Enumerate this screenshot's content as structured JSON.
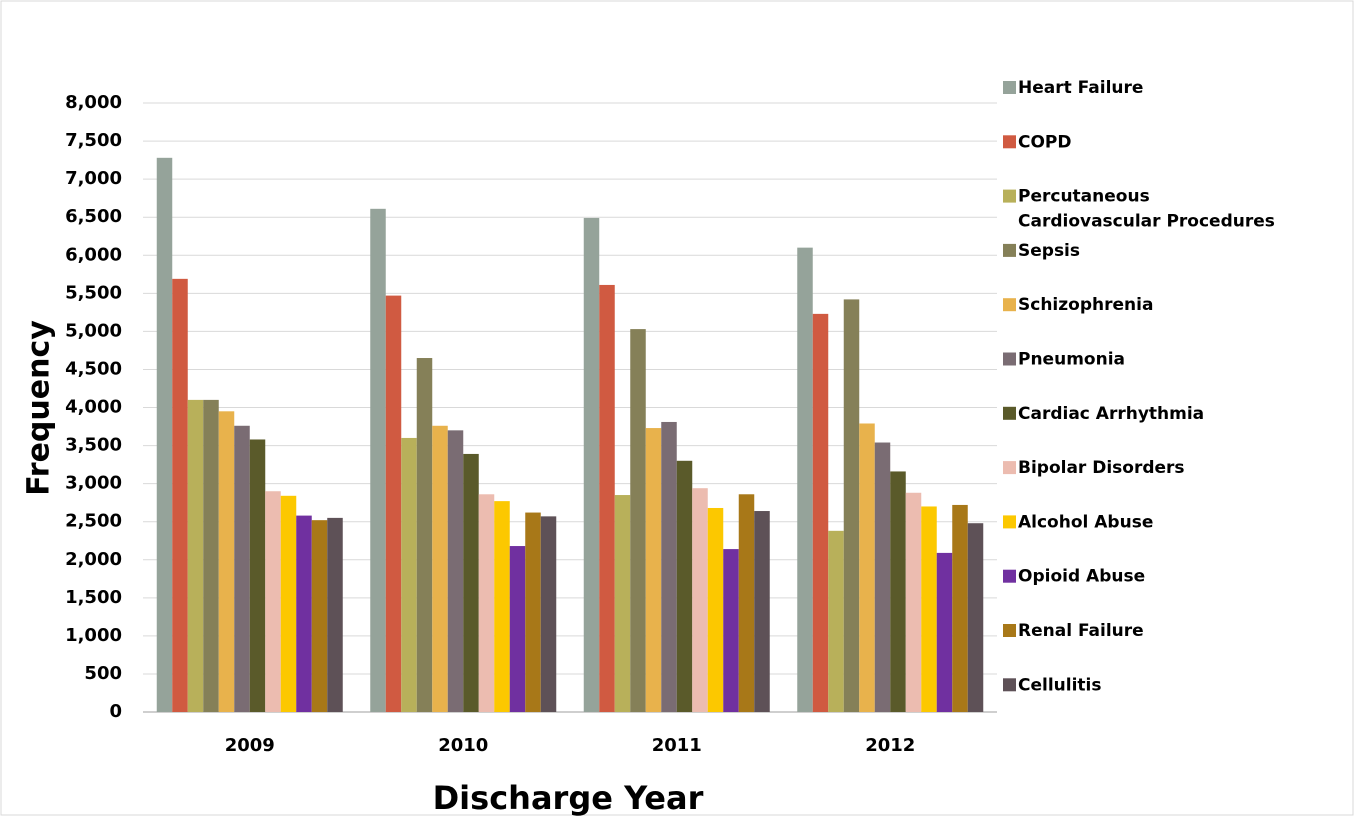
{
  "chart_data": {
    "type": "bar",
    "x_label": "Discharge Year",
    "y_label": "Frequency",
    "categories": [
      "2009",
      "2010",
      "2011",
      "2012"
    ],
    "series": [
      {
        "name": "Heart Failure",
        "color": "#95a39a",
        "values": [
          7280,
          6610,
          6490,
          6100
        ]
      },
      {
        "name": "COPD",
        "color": "#d05a41",
        "values": [
          5690,
          5470,
          5610,
          5230
        ]
      },
      {
        "name": "Percutaneous Cardiovascular Procedures",
        "color": "#b8b05a",
        "values": [
          4100,
          3600,
          2850,
          2380
        ]
      },
      {
        "name": "Sepsis",
        "color": "#858058",
        "values": [
          4100,
          4650,
          5030,
          5420
        ]
      },
      {
        "name": "Schizophrenia",
        "color": "#e8b24c",
        "values": [
          3950,
          3760,
          3730,
          3790
        ]
      },
      {
        "name": "Pneumonia",
        "color": "#7a6c73",
        "values": [
          3760,
          3700,
          3810,
          3540
        ]
      },
      {
        "name": "Cardiac Arrhythmia",
        "color": "#5a5a2a",
        "values": [
          3580,
          3390,
          3300,
          3160
        ]
      },
      {
        "name": "Bipolar Disorders",
        "color": "#ecbcb0",
        "values": [
          2900,
          2860,
          2940,
          2880
        ]
      },
      {
        "name": "Alcohol Abuse",
        "color": "#fcc800",
        "values": [
          2840,
          2770,
          2680,
          2700
        ]
      },
      {
        "name": "Opioid Abuse",
        "color": "#7030a0",
        "values": [
          2580,
          2180,
          2140,
          2090
        ]
      },
      {
        "name": "Renal Failure",
        "color": "#a87818",
        "values": [
          2520,
          2620,
          2860,
          2720
        ]
      },
      {
        "name": "Cellulitis",
        "color": "#5e5157",
        "values": [
          2550,
          2570,
          2640,
          2480
        ]
      }
    ],
    "ylim": [
      0,
      8000
    ],
    "yticks": [
      0,
      500,
      {
        "value": 1000,
        "label": "1,000"
      },
      {
        "value": 1500,
        "label": "1,500"
      },
      {
        "value": 2000,
        "label": "2,000"
      },
      {
        "value": 2500,
        "label": "2,500"
      },
      {
        "value": 3000,
        "label": "3,000"
      },
      {
        "value": 3500,
        "label": "3,500"
      },
      {
        "value": 4000,
        "label": "4,000"
      },
      {
        "value": 4500,
        "label": "4,500"
      },
      {
        "value": 5000,
        "label": "5,000"
      },
      {
        "value": 5500,
        "label": "5,500"
      },
      {
        "value": 6000,
        "label": "6,000"
      },
      {
        "value": 6500,
        "label": "6,500"
      },
      {
        "value": 7000,
        "label": "7,000"
      },
      {
        "value": 7500,
        "label": "7,500"
      },
      {
        "value": 8000,
        "label": "8,000"
      }
    ],
    "grid": true,
    "legend": "right"
  }
}
